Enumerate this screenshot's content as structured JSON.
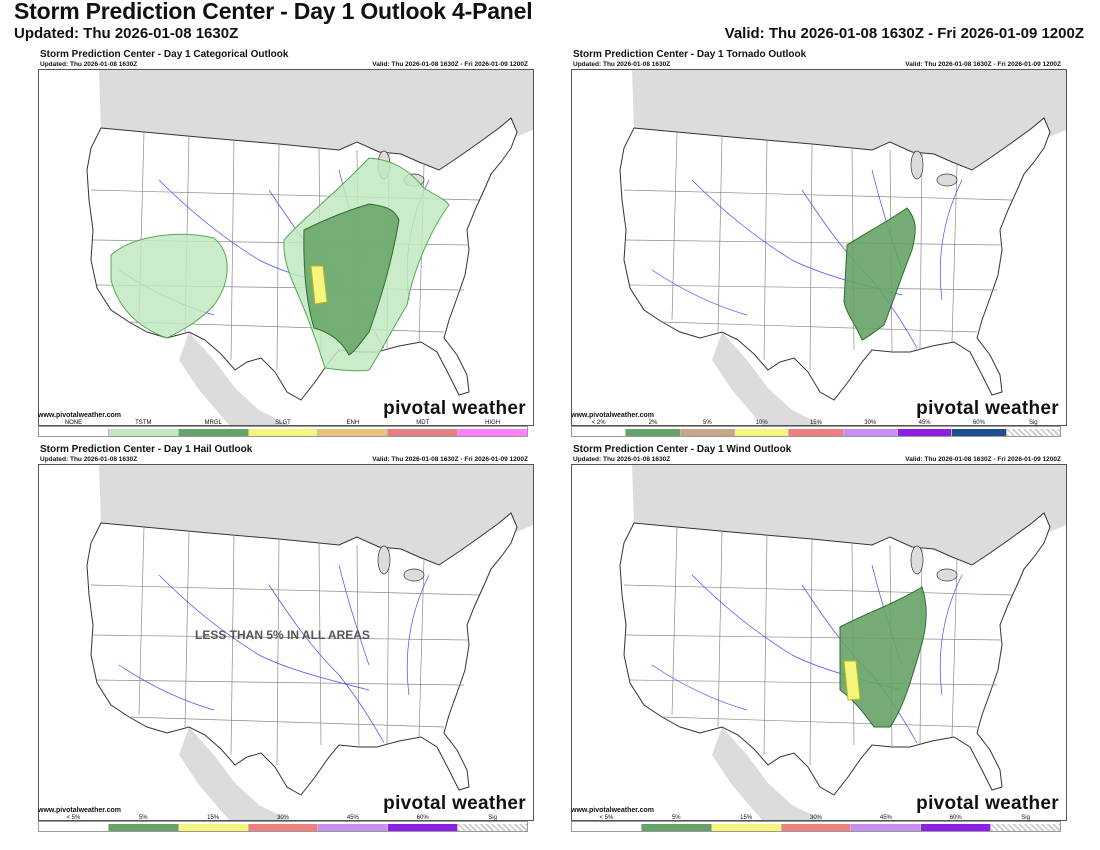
{
  "page": {
    "title": "Storm Prediction Center - Day 1 Outlook 4-Panel",
    "updated": "Updated: Thu 2026-01-08 1630Z",
    "valid": "Valid: Thu 2026-01-08 1630Z - Fri 2026-01-09 1200Z"
  },
  "panels": [
    {
      "title": "Storm Prediction Center - Day 1 Categorical Outlook",
      "updated": "Updated: Thu 2026-01-08 1630Z",
      "valid": "Valid: Thu 2026-01-08 1630Z - Fri 2026-01-09 1200Z",
      "site": "www.pivotalweather.com",
      "brand": "pivotal weather",
      "legend": [
        {
          "label": "NONE",
          "color": "#ffffff"
        },
        {
          "label": "TSTM",
          "color": "#c1e9c1"
        },
        {
          "label": "MRGL",
          "color": "#66a366"
        },
        {
          "label": "SLGT",
          "color": "#f6f67e"
        },
        {
          "label": "ENH",
          "color": "#e6c27a"
        },
        {
          "label": "MDT",
          "color": "#e67f7f"
        },
        {
          "label": "HIGH",
          "color": "#ff7fff"
        }
      ],
      "areas": [
        "TSTM",
        "MRGL",
        "SLGT"
      ]
    },
    {
      "title": "Storm Prediction Center - Day 1 Tornado Outlook",
      "updated": "Updated: Thu 2026-01-08 1630Z",
      "valid": "Valid: Thu 2026-01-08 1630Z - Fri 2026-01-09 1200Z",
      "site": "www.pivotalweather.com",
      "brand": "pivotal weather",
      "legend": [
        {
          "label": "< 2%",
          "color": "#ffffff"
        },
        {
          "label": "2%",
          "color": "#66a366"
        },
        {
          "label": "5%",
          "color": "#c9a58a"
        },
        {
          "label": "10%",
          "color": "#f6f67e"
        },
        {
          "label": "15%",
          "color": "#f08080"
        },
        {
          "label": "30%",
          "color": "#c88ff0"
        },
        {
          "label": "45%",
          "color": "#8c1ee6"
        },
        {
          "label": "60%",
          "color": "#1f4e8c"
        },
        {
          "label": "Sig",
          "color": "hatch"
        }
      ],
      "areas": [
        "2%"
      ]
    },
    {
      "title": "Storm Prediction Center - Day 1 Hail Outlook",
      "updated": "Updated: Thu 2026-01-08 1630Z",
      "valid": "Valid: Thu 2026-01-08 1630Z - Fri 2026-01-09 1200Z",
      "site": "www.pivotalweather.com",
      "brand": "pivotal weather",
      "note": "LESS THAN 5% IN ALL AREAS",
      "legend": [
        {
          "label": "< 5%",
          "color": "#ffffff"
        },
        {
          "label": "5%",
          "color": "#66a366"
        },
        {
          "label": "15%",
          "color": "#f6f67e"
        },
        {
          "label": "30%",
          "color": "#f08080"
        },
        {
          "label": "45%",
          "color": "#c88ff0"
        },
        {
          "label": "60%",
          "color": "#8c1ee6"
        },
        {
          "label": "Sig",
          "color": "hatch"
        }
      ],
      "areas": []
    },
    {
      "title": "Storm Prediction Center - Day 1 Wind Outlook",
      "updated": "Updated: Thu 2026-01-08 1630Z",
      "valid": "Valid: Thu 2026-01-08 1630Z - Fri 2026-01-09 1200Z",
      "site": "www.pivotalweather.com",
      "brand": "pivotal weather",
      "legend": [
        {
          "label": "< 5%",
          "color": "#ffffff"
        },
        {
          "label": "5%",
          "color": "#66a366"
        },
        {
          "label": "15%",
          "color": "#f6f67e"
        },
        {
          "label": "30%",
          "color": "#f08080"
        },
        {
          "label": "45%",
          "color": "#c88ff0"
        },
        {
          "label": "60%",
          "color": "#8c1ee6"
        },
        {
          "label": "Sig",
          "color": "hatch"
        }
      ],
      "areas": [
        "5%",
        "15%"
      ]
    }
  ]
}
